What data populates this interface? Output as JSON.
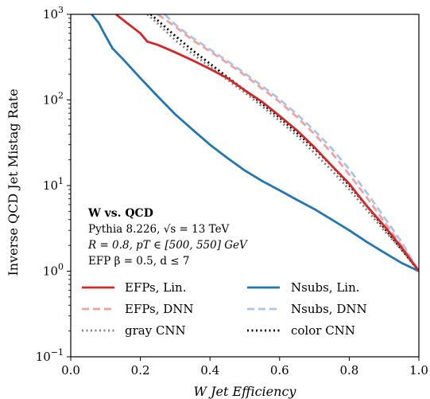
{
  "chart_data": {
    "type": "line",
    "xlabel": "W Jet Efficiency",
    "ylabel": "Inverse QCD Jet Mistag Rate",
    "xlim": [
      0.0,
      1.0
    ],
    "ylim": [
      0.1,
      1000
    ],
    "yscale": "log",
    "x_ticks": [
      "0.0",
      "0.2",
      "0.4",
      "0.6",
      "0.8",
      "1.0"
    ],
    "y_ticks": [
      {
        "base": "10",
        "exp": "−1"
      },
      {
        "base": "10",
        "exp": "0"
      },
      {
        "base": "10",
        "exp": "1"
      },
      {
        "base": "10",
        "exp": "2"
      },
      {
        "base": "10",
        "exp": "3"
      }
    ],
    "grid": false,
    "annotation": {
      "title": "W vs. QCD",
      "line1": "Pythia 8.226, √s = 13 TeV",
      "line2": "R = 0.8, pT ∈ [500, 550] GeV",
      "line3": "EFP β = 0.5, d ≤ 7"
    },
    "legend_position": "lower-left",
    "series": [
      {
        "name": "EFPs, Lin.",
        "color": "#d62728",
        "dash": "solid",
        "x": [
          0.13,
          0.16,
          0.2,
          0.22,
          0.25,
          0.3,
          0.35,
          0.4,
          0.45,
          0.5,
          0.55,
          0.6,
          0.65,
          0.7,
          0.75,
          0.8,
          0.85,
          0.9,
          0.95,
          1.0
        ],
        "y": [
          1000,
          800,
          600,
          480,
          440,
          360,
          290,
          230,
          180,
          130,
          95,
          65,
          44,
          28,
          17,
          10.5,
          5.8,
          3.4,
          1.9,
          1.0
        ]
      },
      {
        "name": "EFPs, DNN",
        "color": "#f4a0a0",
        "dash": "dash",
        "x": [
          0.25,
          0.3,
          0.35,
          0.4,
          0.45,
          0.5,
          0.55,
          0.6,
          0.65,
          0.7,
          0.75,
          0.8,
          0.85,
          0.9,
          0.95,
          1.0
        ],
        "y": [
          1000,
          720,
          500,
          370,
          270,
          195,
          135,
          95,
          63,
          40,
          24,
          13.5,
          7.3,
          3.8,
          2.0,
          1.0
        ]
      },
      {
        "name": "Nsubs, Lin.",
        "color": "#1f77b4",
        "dash": "solid",
        "x": [
          0.06,
          0.08,
          0.1,
          0.12,
          0.15,
          0.2,
          0.25,
          0.3,
          0.35,
          0.4,
          0.45,
          0.5,
          0.55,
          0.6,
          0.65,
          0.7,
          0.75,
          0.8,
          0.85,
          0.9,
          0.95,
          1.0
        ],
        "y": [
          1000,
          800,
          560,
          400,
          300,
          180,
          110,
          68,
          45,
          30,
          21,
          15,
          11.3,
          8.8,
          6.8,
          5.3,
          4.0,
          3.0,
          2.2,
          1.65,
          1.25,
          1.0
        ]
      },
      {
        "name": "Nsubs, DNN",
        "color": "#a9c6e8",
        "dash": "dash",
        "x": [
          0.27,
          0.3,
          0.35,
          0.4,
          0.45,
          0.5,
          0.55,
          0.6,
          0.65,
          0.7,
          0.75,
          0.8,
          0.85,
          0.9,
          0.95,
          1.0
        ],
        "y": [
          1000,
          760,
          530,
          390,
          285,
          205,
          145,
          102,
          68,
          44,
          27,
          15.5,
          8.3,
          4.3,
          2.2,
          1.0
        ]
      },
      {
        "name": "gray CNN",
        "color": "#808080",
        "dash": "dot",
        "x": [
          0.22,
          0.25,
          0.3,
          0.35,
          0.4,
          0.45,
          0.5,
          0.55,
          0.6,
          0.65,
          0.7,
          0.75,
          0.8,
          0.85,
          0.9,
          0.95,
          1.0
        ],
        "y": [
          1000,
          780,
          500,
          345,
          245,
          172,
          122,
          84,
          57,
          38,
          24,
          15,
          9,
          5.2,
          3.0,
          1.8,
          1.0
        ]
      },
      {
        "name": "color CNN",
        "color": "#000000",
        "dash": "dot",
        "x": [
          0.23,
          0.25,
          0.3,
          0.35,
          0.4,
          0.45,
          0.5,
          0.55,
          0.6,
          0.65,
          0.7,
          0.75,
          0.8,
          0.85,
          0.9,
          0.95,
          1.0
        ],
        "y": [
          1000,
          850,
          560,
          380,
          265,
          185,
          130,
          90,
          62,
          41,
          27,
          17,
          10,
          5.8,
          3.2,
          1.8,
          1.0
        ]
      }
    ]
  }
}
